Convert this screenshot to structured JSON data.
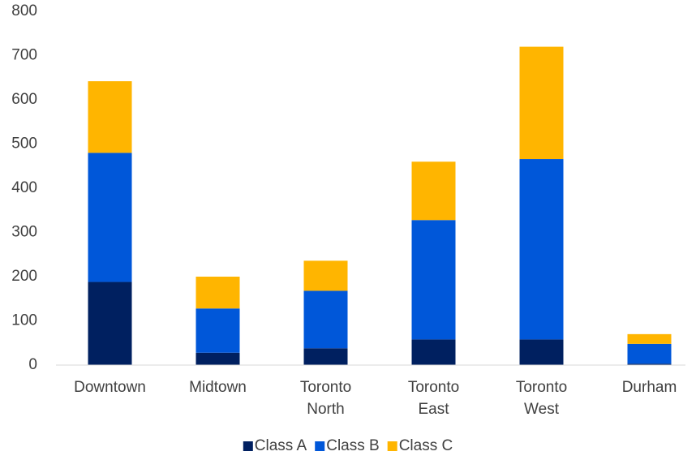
{
  "chart_data": {
    "type": "stacked_bar",
    "categories": [
      "Downtown",
      "Midtown",
      "Toronto North",
      "Toronto East",
      "Toronto West",
      "Durham"
    ],
    "series": [
      {
        "name": "Class A",
        "color": "#002060",
        "values": [
          188,
          28,
          38,
          58,
          58,
          3
        ]
      },
      {
        "name": "Class B",
        "color": "#0057d9",
        "values": [
          292,
          100,
          130,
          270,
          408,
          45
        ]
      },
      {
        "name": "Class C",
        "color": "#ffb500",
        "values": [
          162,
          72,
          68,
          132,
          254,
          22
        ]
      }
    ],
    "ylim": [
      0,
      800
    ],
    "yticks": [
      0,
      100,
      200,
      300,
      400,
      500,
      600,
      700,
      800
    ],
    "grid": false,
    "legend": "bottom"
  }
}
